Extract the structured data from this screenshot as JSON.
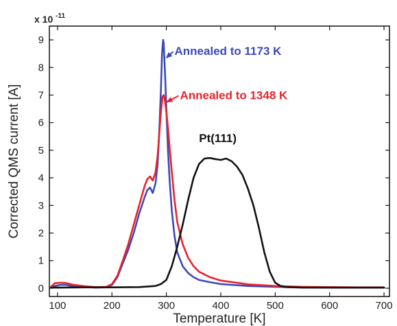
{
  "chart_data": {
    "type": "line",
    "title": "",
    "xlabel": "Temperature [K]",
    "ylabel": "Corrected QMS current [A]",
    "y_scale_label": {
      "base": "x 10",
      "exponent": "-11"
    },
    "xlim": [
      85,
      710
    ],
    "ylim": [
      -0.3,
      9.5
    ],
    "xticks": [
      100,
      200,
      300,
      400,
      500,
      600,
      700
    ],
    "yticks": [
      0,
      1,
      2,
      3,
      4,
      5,
      6,
      7,
      8,
      9
    ],
    "grid": false,
    "series": [
      {
        "name": "Annealed to 1173 K",
        "color": "#3b49b8",
        "x": [
          88,
          95,
          105,
          115,
          130,
          150,
          170,
          190,
          200,
          210,
          220,
          230,
          240,
          250,
          260,
          265,
          270,
          275,
          280,
          284,
          287,
          290,
          292,
          294,
          295,
          296,
          298,
          300,
          303,
          306,
          310,
          315,
          320,
          330,
          340,
          350,
          360,
          380,
          400,
          450,
          500,
          550,
          600,
          650,
          700
        ],
        "y": [
          0.02,
          0.08,
          0.12,
          0.12,
          0.07,
          0.04,
          0.02,
          0.03,
          0.12,
          0.4,
          0.9,
          1.4,
          2.0,
          2.7,
          3.3,
          3.55,
          3.65,
          3.45,
          3.8,
          4.5,
          5.7,
          7.2,
          8.5,
          9.0,
          8.9,
          8.5,
          7.6,
          6.5,
          5.0,
          3.9,
          2.8,
          1.9,
          1.3,
          0.8,
          0.55,
          0.4,
          0.3,
          0.22,
          0.15,
          0.08,
          0.05,
          0.03,
          0.02,
          0.02,
          0.02
        ]
      },
      {
        "name": "Annealed to 1348 K",
        "color": "#e8232a",
        "x": [
          88,
          95,
          105,
          115,
          130,
          150,
          170,
          190,
          200,
          210,
          220,
          230,
          240,
          250,
          260,
          265,
          270,
          275,
          280,
          284,
          287,
          290,
          293,
          295,
          297,
          300,
          303,
          306,
          310,
          315,
          320,
          330,
          340,
          350,
          360,
          380,
          400,
          450,
          500,
          550,
          600,
          650,
          700
        ],
        "y": [
          0.05,
          0.18,
          0.2,
          0.19,
          0.12,
          0.07,
          0.04,
          0.05,
          0.15,
          0.45,
          1.0,
          1.6,
          2.3,
          3.0,
          3.7,
          3.95,
          4.05,
          3.9,
          4.2,
          4.8,
          5.6,
          6.4,
          6.95,
          7.0,
          6.85,
          6.4,
          5.8,
          5.1,
          4.2,
          3.2,
          2.4,
          1.6,
          1.1,
          0.8,
          0.6,
          0.4,
          0.28,
          0.14,
          0.08,
          0.05,
          0.04,
          0.03,
          0.03
        ]
      },
      {
        "name": "Pt(111)",
        "color": "#111111",
        "x": [
          88,
          100,
          150,
          200,
          250,
          280,
          290,
          300,
          310,
          320,
          330,
          340,
          350,
          360,
          370,
          380,
          390,
          400,
          410,
          420,
          430,
          440,
          450,
          460,
          470,
          480,
          490,
          500,
          510,
          520,
          550,
          600,
          650,
          700
        ],
        "y": [
          0.02,
          0.02,
          0.03,
          0.03,
          0.04,
          0.08,
          0.15,
          0.3,
          0.8,
          1.5,
          2.3,
          3.2,
          4.0,
          4.5,
          4.7,
          4.72,
          4.68,
          4.65,
          4.7,
          4.6,
          4.4,
          4.1,
          3.6,
          3.0,
          2.2,
          1.3,
          0.6,
          0.2,
          0.08,
          0.04,
          0.02,
          0.02,
          0.02,
          0.02
        ]
      }
    ],
    "annotations": [
      {
        "text": "Annealed to 1173 K",
        "color": "#3b49b8",
        "text_x": 315,
        "text_y": 8.45,
        "arrow_to_x": 300,
        "arrow_to_y": 8.35,
        "arrow": true
      },
      {
        "text": "Annealed to 1348 K",
        "color": "#e8232a",
        "text_x": 325,
        "text_y": 6.85,
        "arrow_to_x": 301,
        "arrow_to_y": 6.75,
        "arrow": true
      },
      {
        "text": "Pt(111)",
        "color": "#111111",
        "text_x": 360,
        "text_y": 5.3,
        "arrow": false
      }
    ]
  }
}
